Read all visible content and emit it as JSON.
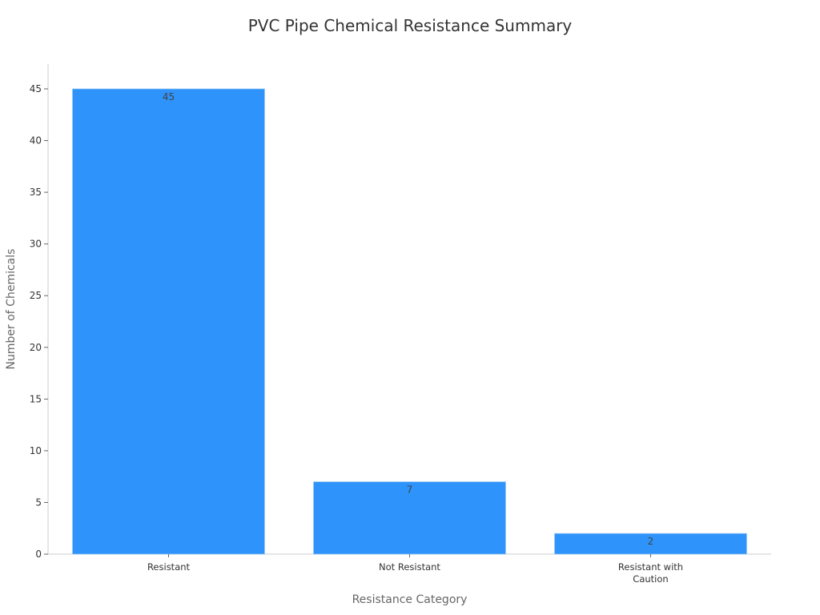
{
  "chart_data": {
    "type": "bar",
    "title": "PVC Pipe Chemical Resistance Summary",
    "xlabel": "Resistance Category",
    "ylabel": "Number of Chemicals",
    "categories": [
      "Resistant",
      "Not Resistant",
      "Resistant with Caution"
    ],
    "category_lines": [
      [
        "Resistant"
      ],
      [
        "Not Resistant"
      ],
      [
        "Resistant with",
        "Caution"
      ]
    ],
    "values": [
      45,
      7,
      2
    ],
    "data_labels": [
      "45",
      "7",
      "2"
    ],
    "ylim": [
      0,
      47.4
    ],
    "yticks": [
      0,
      5,
      10,
      15,
      20,
      25,
      30,
      35,
      40,
      45
    ],
    "grid": false,
    "bar_color": "#2E93FA"
  }
}
